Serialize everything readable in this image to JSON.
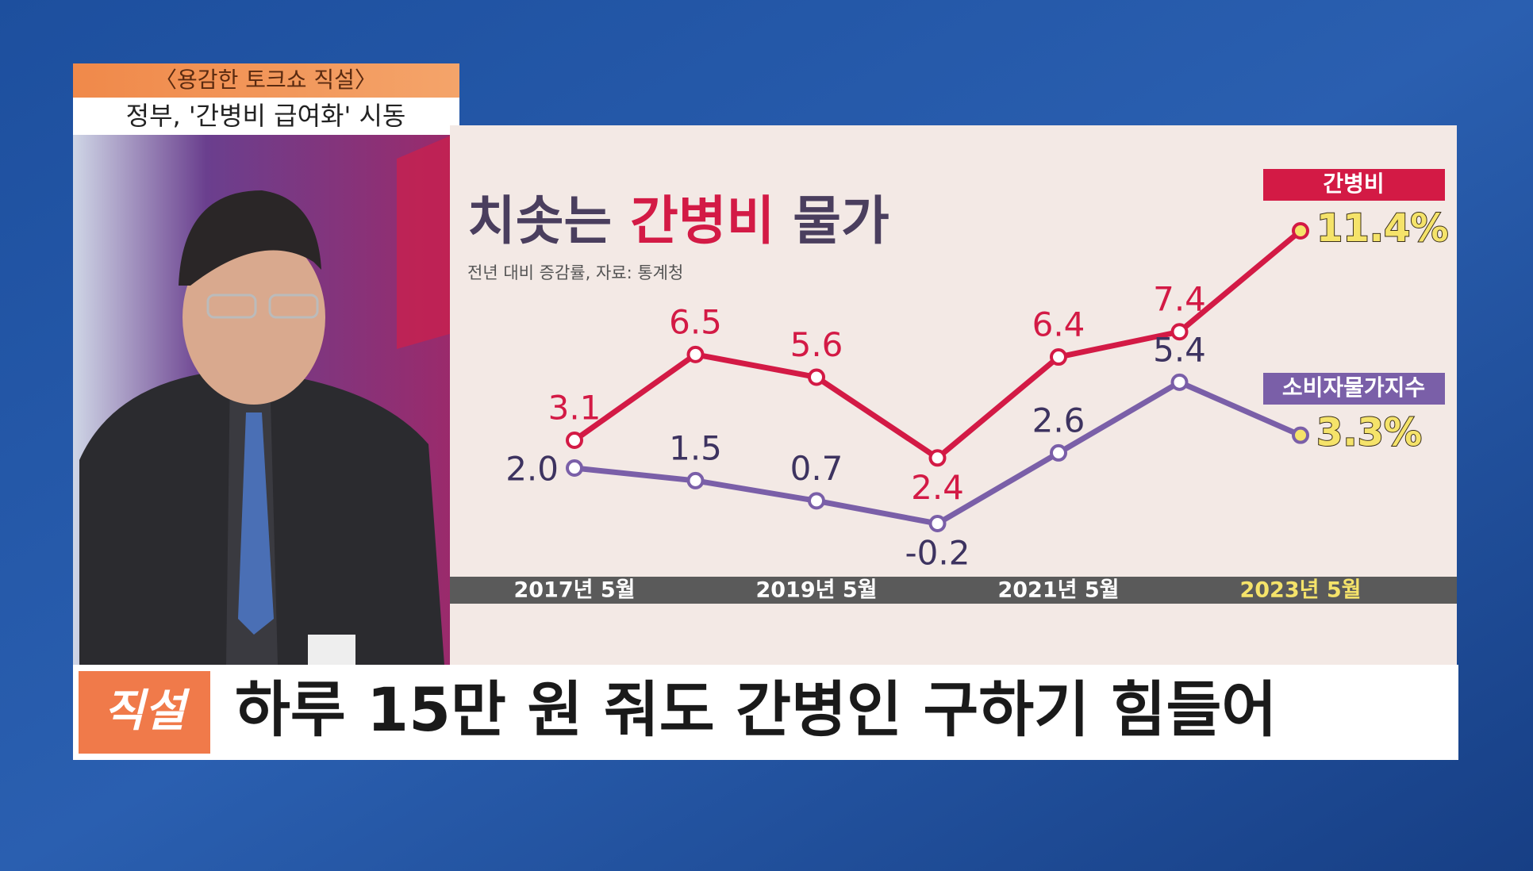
{
  "program": {
    "name": "〈용감한 토크쇼 직설〉",
    "topic": "정부, '간병비 급여화' 시동"
  },
  "caption": {
    "badge": "직설",
    "headline": "하루 15만 원 줘도 간병인 구하기 힘들어"
  },
  "chart_data": {
    "type": "line",
    "title": "치솟는 간병비 물가",
    "subtitle": "전년 대비 증감률, 자료: 통계청",
    "categories": [
      "2017년 5월",
      null,
      "2019년 5월",
      null,
      "2021년 5월",
      null,
      "2023년 5월"
    ],
    "series": [
      {
        "name": "간병비",
        "color": "#d31a45",
        "values": [
          3.1,
          6.5,
          5.6,
          2.4,
          6.4,
          7.4,
          11.4
        ],
        "value_labels": [
          "3.1",
          "6.5",
          "5.6",
          "2.4",
          "6.4",
          "7.4",
          "11.4%"
        ]
      },
      {
        "name": "소비자물가지수",
        "color": "#7a5fa8",
        "values": [
          2.0,
          1.5,
          0.7,
          -0.2,
          2.6,
          5.4,
          3.3
        ],
        "value_labels": [
          "2.0",
          "1.5",
          "0.7",
          "-0.2",
          "2.6",
          "5.4",
          "3.3%"
        ]
      }
    ]
  }
}
